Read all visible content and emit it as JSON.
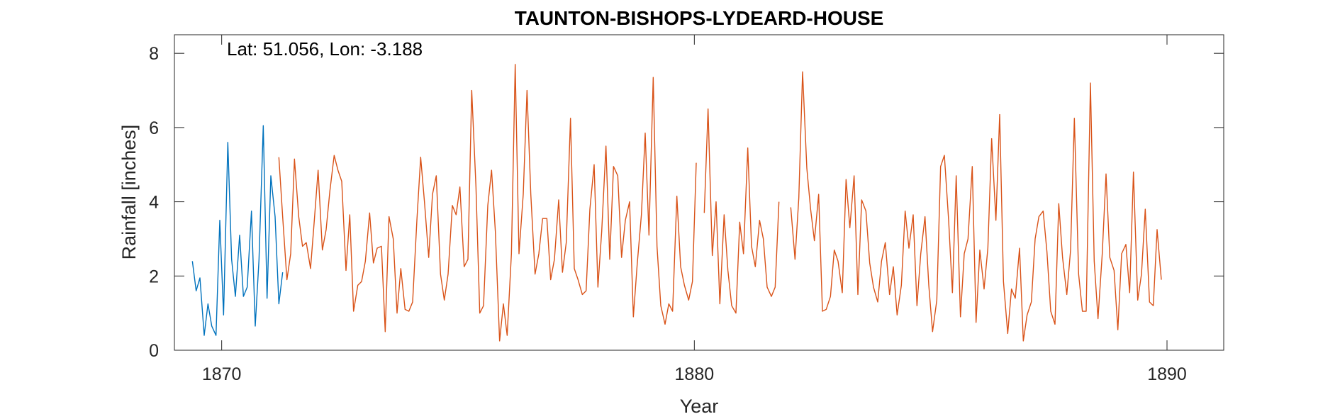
{
  "chart_data": {
    "type": "line",
    "title": "TAUNTON-BISHOPS-LYDEARD-HOUSE",
    "annotation": "Lat: 51.056, Lon: -3.188",
    "xlabel": "Year",
    "ylabel": "Rainfall [inches]",
    "xlim": [
      1869,
      1891.2
    ],
    "ylim": [
      0,
      8.5
    ],
    "xticks": [
      1870,
      1880,
      1890
    ],
    "yticks": [
      0,
      2,
      4,
      6,
      8
    ],
    "grid": false,
    "series": [
      {
        "color": "#0072BD",
        "x": [
          1869.38,
          1869.46,
          1869.54,
          1869.63,
          1869.71,
          1869.79,
          1869.88,
          1869.96,
          1870.04,
          1870.13,
          1870.21,
          1870.29,
          1870.38,
          1870.46,
          1870.54,
          1870.63,
          1870.71,
          1870.79,
          1870.88,
          1870.96,
          1871.04,
          1871.13,
          1871.21,
          1871.29,
          1871.38,
          1871.46,
          1871.54
        ],
        "y": [
          2.4,
          1.6,
          1.95,
          0.4,
          1.25,
          0.65,
          0.4,
          3.5,
          0.95,
          5.6,
          2.45,
          1.45,
          3.1,
          1.45,
          1.7,
          3.75,
          0.65,
          2.45,
          6.05,
          1.4,
          4.7,
          3.6,
          1.25,
          2.1,
          null,
          null,
          null
        ]
      },
      {
        "color": "#D95319",
        "x": [
          1871.21,
          1871.29,
          1871.38,
          1871.46,
          1871.54,
          1871.63,
          1871.71,
          1871.79,
          1871.88,
          1871.96,
          1872.04,
          1872.13,
          1872.21,
          1872.29,
          1872.38,
          1872.46,
          1872.54,
          1872.63,
          1872.71,
          1872.79,
          1872.88,
          1872.96,
          1873.04,
          1873.13,
          1873.21,
          1873.29,
          1873.38,
          1873.46,
          1873.54,
          1873.63,
          1873.71,
          1873.79,
          1873.88,
          1873.96,
          1874.04,
          1874.13,
          1874.21,
          1874.29,
          1874.38,
          1874.46,
          1874.54,
          1874.63,
          1874.71,
          1874.79,
          1874.88,
          1874.96,
          1875.04,
          1875.13,
          1875.21,
          1875.29,
          1875.38,
          1875.46,
          1875.54,
          1875.63,
          1875.71,
          1875.79,
          1875.88,
          1875.96,
          1876.04,
          1876.13,
          1876.21,
          1876.29,
          1876.38,
          1876.46,
          1876.54,
          1876.63,
          1876.71,
          1876.79,
          1876.88,
          1876.96,
          1877.04,
          1877.13,
          1877.21,
          1877.29,
          1877.38,
          1877.46,
          1877.54,
          1877.63,
          1877.71,
          1877.79,
          1877.88,
          1877.96,
          1878.04,
          1878.13,
          1878.21,
          1878.29,
          1878.38,
          1878.46,
          1878.54,
          1878.63,
          1878.71,
          1878.79,
          1878.88,
          1878.96,
          1879.04,
          1879.13,
          1879.21,
          1879.29,
          1879.38,
          1879.46,
          1879.54,
          1879.63,
          1879.71,
          1879.79,
          1879.88,
          1879.96,
          1880.04,
          1880.13,
          1880.21,
          1880.29,
          1880.38,
          1880.46,
          1880.54,
          1880.63,
          1880.71,
          1880.79,
          1880.88,
          1880.96,
          1881.04,
          1881.13,
          1881.21,
          1881.29,
          1881.38,
          1881.46,
          1881.54,
          1881.63,
          1881.71,
          1881.79,
          1881.88,
          1881.96,
          1882.04,
          1882.13,
          1882.21,
          1882.29,
          1882.38,
          1882.46,
          1882.54,
          1882.63,
          1882.71,
          1882.79,
          1882.88,
          1882.96,
          1883.04,
          1883.13,
          1883.21,
          1883.29,
          1883.38,
          1883.46,
          1883.54,
          1883.63,
          1883.71,
          1883.79,
          1883.88,
          1883.96,
          1884.04,
          1884.13,
          1884.21,
          1884.29,
          1884.38,
          1884.46,
          1884.54,
          1884.63,
          1884.71,
          1884.79,
          1884.88,
          1884.96,
          1885.04,
          1885.13,
          1885.21,
          1885.29,
          1885.38,
          1885.46,
          1885.54,
          1885.63,
          1885.71,
          1885.79,
          1885.88,
          1885.96,
          1886.04,
          1886.13,
          1886.21,
          1886.29,
          1886.38,
          1886.46,
          1886.54,
          1886.63,
          1886.71,
          1886.79,
          1886.88,
          1886.96,
          1887.04,
          1887.13,
          1887.21,
          1887.29,
          1887.38,
          1887.46,
          1887.54,
          1887.63,
          1887.71,
          1887.79,
          1887.88,
          1887.96,
          1888.04,
          1888.13,
          1888.21,
          1888.29,
          1888.38,
          1888.46,
          1888.54,
          1888.63,
          1888.71,
          1888.79,
          1888.88,
          1888.96,
          1889.04,
          1889.13,
          1889.21,
          1889.29,
          1889.38,
          1889.46,
          1889.54,
          1889.63,
          1889.71,
          1889.79,
          1889.88
        ],
        "y": [
          5.2,
          3.6,
          1.9,
          2.6,
          5.15,
          3.6,
          2.8,
          2.9,
          2.2,
          3.5,
          4.85,
          2.7,
          3.25,
          4.3,
          5.25,
          4.85,
          4.55,
          2.15,
          3.65,
          1.05,
          1.75,
          1.85,
          2.4,
          3.7,
          2.35,
          2.75,
          2.8,
          0.5,
          3.6,
          3.0,
          1.0,
          2.2,
          1.1,
          1.05,
          1.3,
          3.5,
          5.2,
          4.0,
          2.5,
          4.2,
          4.7,
          2.05,
          1.35,
          2.05,
          3.9,
          3.65,
          4.4,
          2.25,
          2.45,
          7.0,
          4.4,
          1.0,
          1.2,
          3.9,
          4.85,
          3.2,
          0.25,
          1.25,
          0.4,
          2.6,
          7.7,
          2.6,
          4.2,
          7.0,
          4.2,
          2.05,
          2.6,
          3.55,
          3.55,
          1.9,
          2.45,
          4.05,
          2.1,
          2.9,
          6.25,
          2.2,
          1.9,
          1.5,
          1.6,
          3.8,
          5.0,
          1.7,
          3.2,
          5.5,
          2.45,
          4.95,
          4.7,
          2.5,
          3.5,
          4.0,
          0.9,
          2.3,
          3.65,
          5.85,
          3.1,
          7.35,
          2.8,
          1.2,
          0.7,
          1.25,
          1.05,
          4.15,
          2.25,
          1.75,
          1.35,
          1.85,
          5.05,
          null,
          3.7,
          6.5,
          2.55,
          4.0,
          1.25,
          3.65,
          2.15,
          1.2,
          1.0,
          3.45,
          2.6,
          5.45,
          2.8,
          2.25,
          3.5,
          3.0,
          1.7,
          1.45,
          1.7,
          4.0,
          null,
          null,
          3.85,
          2.45,
          4.1,
          7.5,
          4.9,
          3.8,
          2.95,
          4.2,
          1.05,
          1.1,
          1.45,
          2.7,
          2.4,
          1.55,
          4.6,
          3.3,
          4.7,
          1.5,
          4.05,
          3.75,
          2.35,
          1.7,
          1.3,
          2.4,
          2.9,
          1.5,
          2.25,
          0.95,
          1.75,
          3.75,
          2.75,
          3.65,
          1.2,
          2.6,
          3.6,
          1.75,
          0.5,
          1.35,
          4.95,
          5.25,
          3.5,
          1.55,
          4.7,
          0.9,
          2.6,
          3.0,
          4.95,
          0.75,
          2.7,
          1.65,
          2.75,
          5.7,
          3.5,
          6.35,
          1.85,
          0.45,
          1.65,
          1.4,
          2.75,
          0.25,
          0.95,
          1.3,
          3.0,
          3.6,
          3.75,
          2.65,
          1.05,
          0.7,
          3.95,
          2.5,
          1.5,
          2.7,
          6.25,
          2.05,
          1.05,
          1.05,
          7.2,
          2.4,
          0.85,
          2.6,
          4.75,
          2.5,
          2.15,
          0.55,
          2.6,
          2.85,
          1.55,
          4.8,
          1.35,
          2.05,
          3.8,
          1.3,
          1.2,
          3.25,
          1.9
        ]
      }
    ]
  }
}
